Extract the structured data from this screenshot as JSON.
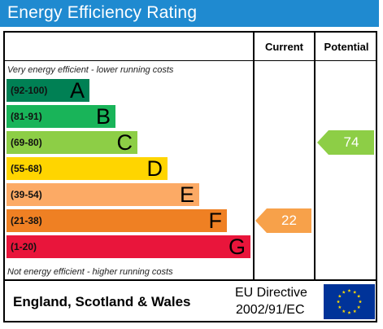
{
  "title": "Energy Efficiency Rating",
  "columns": {
    "current": "Current",
    "potential": "Potential"
  },
  "top_note": "Very energy efficient - lower running costs",
  "bottom_note": "Not energy efficient - higher running costs",
  "bands": [
    {
      "range": "(92-100)",
      "letter": "A",
      "color": "#008054"
    },
    {
      "range": "(81-91)",
      "letter": "B",
      "color": "#19b459"
    },
    {
      "range": "(69-80)",
      "letter": "C",
      "color": "#8dce46"
    },
    {
      "range": "(55-68)",
      "letter": "D",
      "color": "#ffd500"
    },
    {
      "range": "(39-54)",
      "letter": "E",
      "color": "#fcaa65"
    },
    {
      "range": "(21-38)",
      "letter": "F",
      "color": "#ef8023"
    },
    {
      "range": "(1-20)",
      "letter": "G",
      "color": "#e9153b"
    }
  ],
  "current": {
    "value": "22",
    "band": "F",
    "color": "#f7a14a"
  },
  "potential": {
    "value": "74",
    "band": "C",
    "color": "#8dce46"
  },
  "footer": {
    "region": "England, Scotland & Wales",
    "directive_line1": "EU Directive",
    "directive_line2": "2002/91/EC",
    "flag_icon": "eu-flag-icon"
  },
  "colors": {
    "title_bar": "#1f8ad0",
    "eu_blue": "#003399",
    "eu_star": "#ffdd00"
  }
}
